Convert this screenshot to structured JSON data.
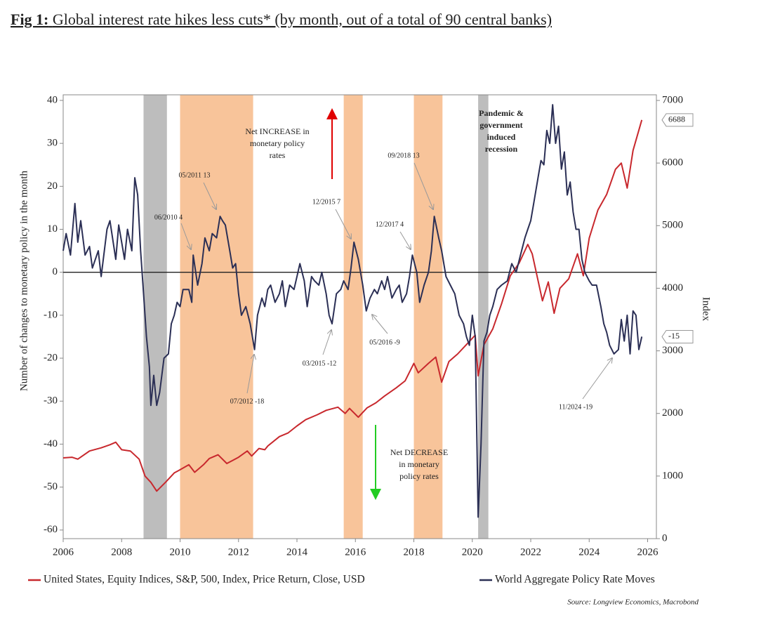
{
  "chart_data": {
    "type": "line",
    "title_prefix": "Fig 1:",
    "title": "Global interest rate hikes less cuts* (by month, out of a total of 90 central banks)",
    "y_label": "Number of changes to monetary policy in the month",
    "y2_label": "Index",
    "source": "Source: Longview Economics, Macrobond",
    "xlim": [
      2006,
      2026.3
    ],
    "xticks": [
      2006,
      2008,
      2010,
      2012,
      2014,
      2016,
      2018,
      2020,
      2022,
      2024,
      2026
    ],
    "ylim": [
      -62,
      41.3
    ],
    "yticks": [
      -60,
      -50,
      -40,
      -30,
      -20,
      -10,
      0,
      10,
      20,
      30,
      40
    ],
    "y2lim": [
      0,
      7090
    ],
    "y2ticks": [
      0,
      1000,
      2000,
      3000,
      4000,
      5000,
      6000,
      7000
    ],
    "legend": "bottom",
    "shaded_regions": [
      {
        "start": 2008.75,
        "end": 2009.55,
        "color": "#bdbdbd"
      },
      {
        "start": 2010.0,
        "end": 2012.5,
        "color": "#f8c49a"
      },
      {
        "start": 2015.6,
        "end": 2016.25,
        "color": "#f8c49a"
      },
      {
        "start": 2018.0,
        "end": 2018.98,
        "color": "#f8c49a"
      },
      {
        "start": 2020.2,
        "end": 2020.55,
        "color": "#bdbdbd"
      }
    ],
    "series": [
      {
        "name": "United States, Equity Indices, S&P, 500, Index, Price Return, Close, USD",
        "color": "#c8282d",
        "axis": "y2",
        "x": [
          2006.0,
          2006.3,
          2006.5,
          2006.9,
          2007.3,
          2007.6,
          2007.8,
          2008.0,
          2008.3,
          2008.6,
          2008.8,
          2009.0,
          2009.2,
          2009.5,
          2009.8,
          2010.0,
          2010.3,
          2010.5,
          2010.8,
          2011.0,
          2011.3,
          2011.6,
          2011.8,
          2012.0,
          2012.3,
          2012.45,
          2012.7,
          2012.9,
          2013.0,
          2013.4,
          2013.7,
          2014.0,
          2014.3,
          2014.7,
          2015.0,
          2015.4,
          2015.65,
          2015.8,
          2016.1,
          2016.4,
          2016.7,
          2017.0,
          2017.4,
          2017.7,
          2018.0,
          2018.15,
          2018.5,
          2018.75,
          2018.95,
          2019.2,
          2019.5,
          2019.8,
          2020.1,
          2020.2,
          2020.4,
          2020.7,
          2021.0,
          2021.3,
          2021.6,
          2021.9,
          2022.05,
          2022.4,
          2022.6,
          2022.8,
          2023.0,
          2023.3,
          2023.6,
          2023.8,
          2024.0,
          2024.3,
          2024.6,
          2024.9,
          2025.1,
          2025.3,
          2025.5,
          2025.8
        ],
        "values": [
          1290,
          1300,
          1270,
          1400,
          1450,
          1500,
          1540,
          1420,
          1400,
          1270,
          1000,
          900,
          760,
          900,
          1050,
          1100,
          1180,
          1060,
          1180,
          1280,
          1340,
          1200,
          1250,
          1300,
          1400,
          1320,
          1440,
          1420,
          1480,
          1630,
          1690,
          1800,
          1900,
          1980,
          2050,
          2100,
          2000,
          2080,
          1940,
          2090,
          2170,
          2280,
          2410,
          2520,
          2800,
          2650,
          2800,
          2900,
          2500,
          2830,
          2950,
          3100,
          3250,
          2600,
          3100,
          3350,
          3750,
          4200,
          4400,
          4700,
          4550,
          3800,
          4100,
          3600,
          4000,
          4150,
          4550,
          4200,
          4800,
          5250,
          5500,
          5900,
          6000,
          5600,
          6200,
          6688
        ]
      },
      {
        "name": "World Aggregate Policy Rate Moves",
        "color": "#2b2f55",
        "x": [
          2006.0,
          2006.1,
          2006.25,
          2006.4,
          2006.5,
          2006.6,
          2006.75,
          2006.9,
          2007.0,
          2007.2,
          2007.3,
          2007.5,
          2007.6,
          2007.8,
          2007.9,
          2008.0,
          2008.1,
          2008.2,
          2008.35,
          2008.45,
          2008.55,
          2008.65,
          2008.75,
          2008.85,
          2008.95,
          2009.0,
          2009.1,
          2009.2,
          2009.3,
          2009.45,
          2009.6,
          2009.7,
          2009.8,
          2009.9,
          2010.0,
          2010.1,
          2010.3,
          2010.4,
          2010.45,
          2010.6,
          2010.75,
          2010.85,
          2011.0,
          2011.1,
          2011.25,
          2011.37,
          2011.45,
          2011.55,
          2011.7,
          2011.8,
          2011.9,
          2012.0,
          2012.1,
          2012.25,
          2012.4,
          2012.55,
          2012.65,
          2012.8,
          2012.9,
          2013.0,
          2013.1,
          2013.25,
          2013.4,
          2013.5,
          2013.6,
          2013.75,
          2013.9,
          2014.0,
          2014.1,
          2014.25,
          2014.35,
          2014.5,
          2014.6,
          2014.75,
          2014.85,
          2015.0,
          2015.1,
          2015.2,
          2015.35,
          2015.5,
          2015.6,
          2015.75,
          2015.85,
          2015.95,
          2016.1,
          2016.25,
          2016.37,
          2016.5,
          2016.65,
          2016.75,
          2016.9,
          2017.0,
          2017.1,
          2017.25,
          2017.4,
          2017.5,
          2017.6,
          2017.75,
          2017.85,
          2017.95,
          2018.1,
          2018.2,
          2018.35,
          2018.5,
          2018.6,
          2018.7,
          2018.85,
          2018.95,
          2019.1,
          2019.25,
          2019.4,
          2019.55,
          2019.7,
          2019.8,
          2019.9,
          2020.0,
          2020.1,
          2020.2,
          2020.3,
          2020.4,
          2020.5,
          2020.6,
          2020.7,
          2020.85,
          2021.0,
          2021.2,
          2021.35,
          2021.5,
          2021.65,
          2021.8,
          2021.9,
          2022.0,
          2022.1,
          2022.25,
          2022.35,
          2022.45,
          2022.55,
          2022.65,
          2022.75,
          2022.85,
          2022.95,
          2023.05,
          2023.15,
          2023.25,
          2023.35,
          2023.45,
          2023.55,
          2023.65,
          2023.75,
          2023.85,
          2024.0,
          2024.1,
          2024.25,
          2024.4,
          2024.5,
          2024.6,
          2024.7,
          2024.85,
          2025.0,
          2025.1,
          2025.2,
          2025.3,
          2025.4,
          2025.5,
          2025.6,
          2025.7,
          2025.8
        ],
        "values": [
          5,
          9,
          4,
          16,
          7,
          12,
          4,
          6,
          1,
          5,
          -1,
          10,
          12,
          3,
          11,
          7,
          3,
          10,
          5,
          22,
          18,
          5,
          -5,
          -15,
          -22,
          -31,
          -24,
          -31,
          -28,
          -20,
          -19,
          -12,
          -10,
          -7,
          -8,
          -4,
          -4,
          -7,
          4,
          -3,
          2,
          8,
          5,
          9,
          8,
          13,
          12,
          11,
          5,
          1,
          2,
          -5,
          -10,
          -8,
          -12,
          -18,
          -10,
          -6,
          -8,
          -4,
          -3,
          -7,
          -5,
          -2,
          -8,
          -3,
          -4,
          -1,
          2,
          -2,
          -8,
          -1,
          -2,
          -3,
          0,
          -5,
          -10,
          -12,
          -5,
          -4,
          -2,
          -4,
          1,
          7,
          3,
          -3,
          -9,
          -6,
          -4,
          -5,
          -2,
          -4,
          -1,
          -6,
          -4,
          -3,
          -7,
          -5,
          -1,
          4,
          0,
          -7,
          -3,
          0,
          5,
          13,
          8,
          5,
          -1,
          -3,
          -5,
          -10,
          -12,
          -15,
          -17,
          -10,
          -15,
          -57,
          -40,
          -16,
          -14,
          -10,
          -8,
          -4,
          -3,
          -2,
          2,
          0,
          4,
          8,
          10,
          12,
          16,
          22,
          26,
          25,
          33,
          30,
          39,
          30,
          34,
          24,
          28,
          18,
          21,
          14,
          10,
          10,
          3,
          0,
          -2,
          -3,
          -3,
          -8,
          -12,
          -14,
          -17,
          -19,
          -18,
          -11,
          -16,
          -10,
          -19,
          -9,
          -10,
          -18,
          -15
        ]
      }
    ],
    "annotations": [
      "06/2010 4",
      "05/2011 13",
      "07/2012 -18",
      "12/2015 7",
      "03/2015 -12",
      "05/2016 -9",
      "12/2017 4",
      "09/2018 13",
      "11/2024 -19"
    ],
    "notes": [
      {
        "lines": [
          "Net INCREASE in",
          "monetary policy",
          "rates"
        ]
      },
      {
        "lines": [
          "Pandemic &",
          "government",
          "induced",
          "recession"
        ]
      },
      {
        "lines": [
          "Net DECREASE",
          "in monetary",
          "policy rates"
        ]
      }
    ]
  }
}
